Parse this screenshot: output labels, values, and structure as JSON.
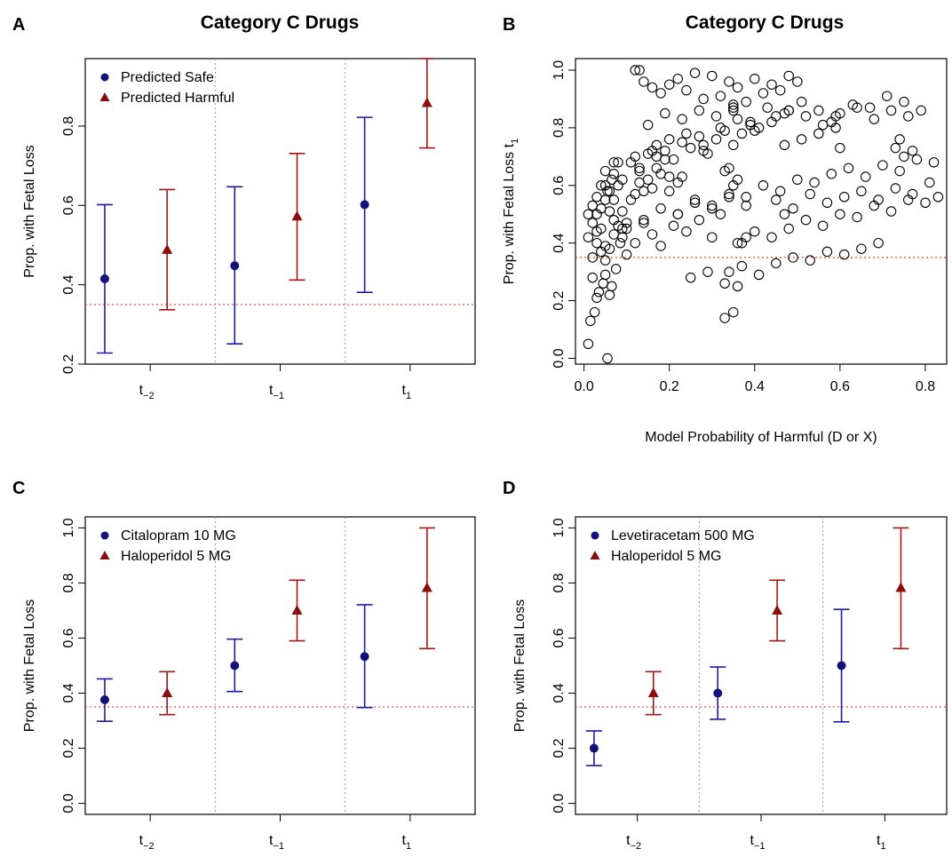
{
  "figure": {
    "panel_labels": [
      "A",
      "B",
      "C",
      "D"
    ]
  },
  "colors": {
    "safe": "#1c1ca8",
    "harmful": "#a31919",
    "ref_line": "#e8504a",
    "divider": "#9a9a9a",
    "marker_blue": "#12127a",
    "marker_red": "#8b0d0d"
  },
  "chart_data": [
    {
      "panel": "A",
      "type": "errorbar",
      "title": "Category C Drugs",
      "xlabel": "",
      "ylabel": "Prop. with Fetal Loss",
      "ylim": [
        0.2,
        0.97
      ],
      "yticks": [
        "0.2",
        "0.4",
        "0.6",
        "0.8"
      ],
      "ytick_values": [
        0.2,
        0.4,
        0.6,
        0.8
      ],
      "categories": [
        {
          "base": "t",
          "sub": "−2"
        },
        {
          "base": "t",
          "sub": "−1"
        },
        {
          "base": "t",
          "sub": "1"
        }
      ],
      "reference_line": 0.35,
      "legend": "top-left",
      "series": [
        {
          "name": "Predicted Safe",
          "marker": "circle",
          "values": [
            0.415,
            0.448,
            0.602
          ],
          "lower": [
            0.228,
            0.251,
            0.381
          ],
          "upper": [
            0.602,
            0.647,
            0.822
          ]
        },
        {
          "name": "Predicted Harmful",
          "marker": "triangle",
          "values": [
            0.488,
            0.572,
            0.858
          ],
          "lower": [
            0.337,
            0.412,
            0.745
          ],
          "upper": [
            0.64,
            0.731,
            0.97
          ]
        }
      ]
    },
    {
      "panel": "B",
      "type": "scatter",
      "title": "Category C Drugs",
      "xlabel": "Model Probability of Harmful (D or X)",
      "ylabel_base": "Prop. with Fetal Loss t",
      "ylabel_sub": "1",
      "xlim": [
        -0.02,
        0.85
      ],
      "ylim": [
        -0.02,
        1.04
      ],
      "xticks": [
        "0.0",
        "0.2",
        "0.4",
        "0.6",
        "0.8"
      ],
      "xtick_values": [
        0.0,
        0.2,
        0.4,
        0.6,
        0.8
      ],
      "yticks": [
        "0.0",
        "0.2",
        "0.4",
        "0.6",
        "0.8",
        "1.0"
      ],
      "ytick_values": [
        0.0,
        0.2,
        0.4,
        0.6,
        0.8,
        1.0
      ],
      "reference_line": 0.35,
      "x": [
        0.01,
        0.015,
        0.02,
        0.02,
        0.025,
        0.03,
        0.03,
        0.035,
        0.04,
        0.04,
        0.045,
        0.05,
        0.05,
        0.055,
        0.06,
        0.06,
        0.065,
        0.07,
        0.07,
        0.075,
        0.08,
        0.085,
        0.09,
        0.1,
        0.01,
        0.02,
        0.03,
        0.04,
        0.05,
        0.06,
        0.07,
        0.08,
        0.09,
        0.1,
        0.11,
        0.12,
        0.13,
        0.14,
        0.15,
        0.16,
        0.17,
        0.18,
        0.19,
        0.2,
        0.03,
        0.05,
        0.07,
        0.09,
        0.11,
        0.13,
        0.15,
        0.17,
        0.19,
        0.21,
        0.23,
        0.25,
        0.27,
        0.29,
        0.31,
        0.33,
        0.35,
        0.37,
        0.39,
        0.41,
        0.08,
        0.12,
        0.16,
        0.2,
        0.24,
        0.28,
        0.32,
        0.36,
        0.4,
        0.44,
        0.48,
        0.52,
        0.56,
        0.6,
        0.64,
        0.68,
        0.72,
        0.76,
        0.1,
        0.14,
        0.18,
        0.22,
        0.26,
        0.3,
        0.34,
        0.38,
        0.42,
        0.46,
        0.5,
        0.54,
        0.58,
        0.62,
        0.66,
        0.7,
        0.74,
        0.78,
        0.82,
        0.12,
        0.13,
        0.14,
        0.16,
        0.18,
        0.2,
        0.22,
        0.24,
        0.26,
        0.28,
        0.3,
        0.32,
        0.34,
        0.36,
        0.38,
        0.4,
        0.42,
        0.44,
        0.46,
        0.48,
        0.5,
        0.15,
        0.19,
        0.23,
        0.27,
        0.31,
        0.35,
        0.39,
        0.43,
        0.47,
        0.51,
        0.55,
        0.59,
        0.63,
        0.67,
        0.71,
        0.75,
        0.79,
        0.22,
        0.26,
        0.3,
        0.34,
        0.38,
        0.45,
        0.47,
        0.49,
        0.53,
        0.57,
        0.61,
        0.65,
        0.69,
        0.73,
        0.77,
        0.81,
        0.36,
        0.4,
        0.44,
        0.48,
        0.52,
        0.56,
        0.6,
        0.64,
        0.68,
        0.72,
        0.76,
        0.8,
        0.83,
        0.25,
        0.29,
        0.33,
        0.37,
        0.41,
        0.45,
        0.49,
        0.53,
        0.57,
        0.61,
        0.65,
        0.69,
        0.73,
        0.74,
        0.75,
        0.77,
        0.33,
        0.35,
        0.34,
        0.36,
        0.37,
        0.38,
        0.2,
        0.22,
        0.23,
        0.33,
        0.34,
        0.35,
        0.36,
        0.06,
        0.09,
        0.12,
        0.14,
        0.16,
        0.18,
        0.21,
        0.24,
        0.27,
        0.3,
        0.32,
        0.01,
        0.02,
        0.03,
        0.05,
        0.055,
        0.04,
        0.065,
        0.05,
        0.07,
        0.13,
        0.17,
        0.28,
        0.47,
        0.51,
        0.55,
        0.59,
        0.58,
        0.6,
        0.35,
        0.35,
        0.45,
        0.48
      ],
      "y": [
        0.05,
        0.13,
        0.28,
        0.35,
        0.16,
        0.21,
        0.4,
        0.23,
        0.37,
        0.45,
        0.26,
        0.29,
        0.34,
        0.0,
        0.22,
        0.38,
        0.25,
        0.43,
        0.55,
        0.31,
        0.46,
        0.4,
        0.42,
        0.36,
        0.5,
        0.53,
        0.44,
        0.52,
        0.39,
        0.58,
        0.48,
        0.6,
        0.51,
        0.47,
        0.55,
        0.57,
        0.61,
        0.58,
        0.62,
        0.59,
        0.66,
        0.64,
        0.69,
        0.63,
        0.56,
        0.6,
        0.64,
        0.62,
        0.68,
        0.65,
        0.71,
        0.74,
        0.72,
        0.69,
        0.75,
        0.73,
        0.77,
        0.71,
        0.76,
        0.79,
        0.74,
        0.78,
        0.81,
        0.8,
        0.68,
        0.7,
        0.72,
        0.76,
        0.78,
        0.74,
        0.8,
        0.83,
        0.79,
        0.82,
        0.86,
        0.84,
        0.81,
        0.85,
        0.87,
        0.83,
        0.86,
        0.84,
        0.45,
        0.48,
        0.52,
        0.5,
        0.55,
        0.53,
        0.57,
        0.56,
        0.6,
        0.58,
        0.62,
        0.61,
        0.64,
        0.66,
        0.63,
        0.67,
        0.65,
        0.69,
        0.68,
        1.0,
        1.0,
        0.96,
        0.94,
        0.92,
        0.95,
        0.97,
        0.93,
        0.99,
        0.9,
        0.98,
        0.91,
        0.96,
        0.94,
        0.89,
        0.97,
        0.92,
        0.95,
        0.93,
        0.98,
        0.96,
        0.81,
        0.85,
        0.83,
        0.86,
        0.84,
        0.88,
        0.82,
        0.87,
        0.85,
        0.89,
        0.86,
        0.84,
        0.88,
        0.87,
        0.91,
        0.89,
        0.86,
        0.5,
        0.54,
        0.52,
        0.56,
        0.53,
        0.55,
        0.5,
        0.52,
        0.57,
        0.54,
        0.56,
        0.58,
        0.55,
        0.59,
        0.57,
        0.61,
        0.4,
        0.44,
        0.42,
        0.45,
        0.48,
        0.46,
        0.5,
        0.49,
        0.53,
        0.51,
        0.55,
        0.54,
        0.56,
        0.28,
        0.3,
        0.26,
        0.32,
        0.29,
        0.33,
        0.35,
        0.34,
        0.37,
        0.36,
        0.38,
        0.4,
        0.73,
        0.76,
        0.7,
        0.72,
        0.14,
        0.16,
        0.3,
        0.25,
        0.4,
        0.42,
        0.58,
        0.61,
        0.63,
        0.65,
        0.66,
        0.6,
        0.62,
        0.51,
        0.45,
        0.4,
        0.47,
        0.43,
        0.39,
        0.46,
        0.44,
        0.48,
        0.42,
        0.5,
        0.42,
        0.47,
        0.5,
        0.55,
        0.58,
        0.6,
        0.62,
        0.65,
        0.68,
        0.66,
        0.7,
        0.72,
        0.74,
        0.76,
        0.78,
        0.8,
        0.82,
        0.73,
        0.86,
        0.87,
        0.84,
        0.86
      ]
    },
    {
      "panel": "C",
      "type": "errorbar",
      "title": "",
      "xlabel": "",
      "ylabel": "Prop. with Fetal Loss",
      "ylim": [
        -0.04,
        1.04
      ],
      "yticks": [
        "0.0",
        "0.2",
        "0.4",
        "0.6",
        "0.8",
        "1.0"
      ],
      "ytick_values": [
        0.0,
        0.2,
        0.4,
        0.6,
        0.8,
        1.0
      ],
      "categories": [
        {
          "base": "t",
          "sub": "−2"
        },
        {
          "base": "t",
          "sub": "−1"
        },
        {
          "base": "t",
          "sub": "1"
        }
      ],
      "reference_line": 0.35,
      "legend": "top-left",
      "series": [
        {
          "name": "Citalopram 10 MG",
          "marker": "circle",
          "values": [
            0.376,
            0.5,
            0.533
          ],
          "lower": [
            0.298,
            0.406,
            0.348
          ],
          "upper": [
            0.452,
            0.596,
            0.721
          ]
        },
        {
          "name": "Haloperidol 5 MG",
          "marker": "triangle",
          "values": [
            0.4,
            0.7,
            0.782
          ],
          "lower": [
            0.322,
            0.59,
            0.562
          ],
          "upper": [
            0.478,
            0.81,
            1.0
          ]
        }
      ]
    },
    {
      "panel": "D",
      "type": "errorbar",
      "title": "",
      "xlabel": "",
      "ylabel": "Prop. with Fetal Loss",
      "ylim": [
        -0.04,
        1.04
      ],
      "yticks": [
        "0.0",
        "0.2",
        "0.4",
        "0.6",
        "0.8",
        "1.0"
      ],
      "ytick_values": [
        0.0,
        0.2,
        0.4,
        0.6,
        0.8,
        1.0
      ],
      "categories": [
        {
          "base": "t",
          "sub": "−2"
        },
        {
          "base": "t",
          "sub": "−1"
        },
        {
          "base": "t",
          "sub": "1"
        }
      ],
      "reference_line": 0.35,
      "legend": "top-left",
      "series": [
        {
          "name": "Levetiracetam 500 MG",
          "marker": "circle",
          "values": [
            0.2,
            0.4,
            0.5
          ],
          "lower": [
            0.137,
            0.305,
            0.296
          ],
          "upper": [
            0.263,
            0.495,
            0.704
          ]
        },
        {
          "name": "Haloperidol 5 MG",
          "marker": "triangle",
          "values": [
            0.4,
            0.7,
            0.782
          ],
          "lower": [
            0.322,
            0.59,
            0.562
          ],
          "upper": [
            0.478,
            0.81,
            1.0
          ]
        }
      ]
    }
  ]
}
